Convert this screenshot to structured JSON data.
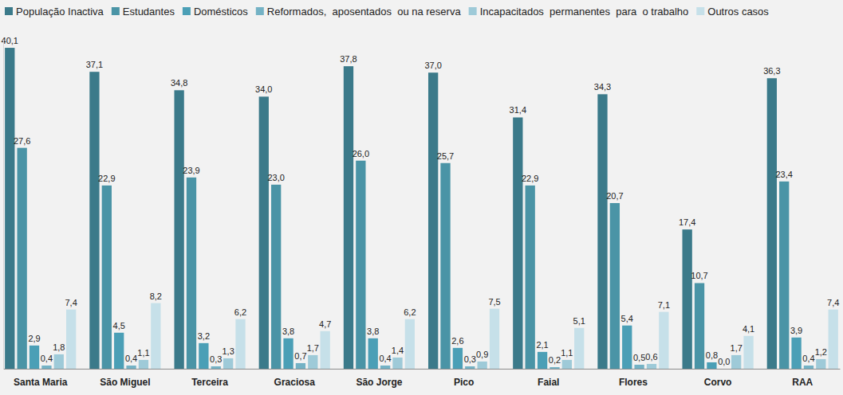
{
  "chart_data": {
    "type": "bar",
    "categories": [
      "Santa Maria",
      "São Miguel",
      "Terceira",
      "Graciosa",
      "São Jorge",
      "Pico",
      "Faial",
      "Flores",
      "Corvo",
      "RAA"
    ],
    "series": [
      {
        "name": "População Inactiva",
        "color": "#3b7a8a",
        "values": [
          40.1,
          37.1,
          34.8,
          34.0,
          37.8,
          37.0,
          31.4,
          34.3,
          17.4,
          36.3
        ],
        "value_labels": [
          "40,1",
          "37,1",
          "34,8",
          "34,0",
          "37,8",
          "37,0",
          "31,4",
          "34,3",
          "17,4",
          "36,3"
        ]
      },
      {
        "name": "Estudantes",
        "color": "#4a94a6",
        "values": [
          27.6,
          22.9,
          23.9,
          23.0,
          26.0,
          25.7,
          22.9,
          20.7,
          10.7,
          23.4
        ],
        "value_labels": [
          "27,6",
          "22,9",
          "23,9",
          "23,0",
          "26,0",
          "25,7",
          "22,9",
          "20,7",
          "10,7",
          "23,4"
        ]
      },
      {
        "name": "Domésticos",
        "color": "#4b9fb6",
        "values": [
          2.9,
          4.5,
          3.2,
          3.8,
          3.8,
          2.6,
          2.1,
          5.4,
          0.8,
          3.9
        ],
        "value_labels": [
          "2,9",
          "4,5",
          "3,2",
          "3,8",
          "3,8",
          "2,6",
          "2,1",
          "5,4",
          "0,8",
          "3,9"
        ]
      },
      {
        "name": "Reformados,  aposentados  ou na reserva",
        "color": "#74b2c5",
        "values": [
          0.4,
          0.4,
          0.3,
          0.7,
          0.4,
          0.3,
          0.2,
          0.5,
          0.0,
          0.4
        ],
        "value_labels": [
          "0,4",
          "0,4",
          "0,3",
          "0,7",
          "0,4",
          "0,3",
          "0,2",
          "0,5",
          "0,0",
          "0,4"
        ]
      },
      {
        "name": "Incapacitados  permanentes  para  o trabalho",
        "color": "#9ecad8",
        "values": [
          1.8,
          1.1,
          1.3,
          1.7,
          1.4,
          0.9,
          1.1,
          0.6,
          1.7,
          1.2
        ],
        "value_labels": [
          "1,8",
          "1,1",
          "1,3",
          "1,7",
          "1,4",
          "0,9",
          "1,1",
          "0,6",
          "1,7",
          "1,2"
        ]
      },
      {
        "name": "Outros casos",
        "color": "#c6e0e9",
        "values": [
          7.4,
          8.2,
          6.2,
          4.7,
          6.2,
          7.5,
          5.1,
          7.1,
          4.1,
          7.4
        ],
        "value_labels": [
          "7,4",
          "8,2",
          "6,2",
          "4,7",
          "6,2",
          "7,5",
          "5,1",
          "7,1",
          "4,1",
          "7,4"
        ]
      }
    ],
    "ylim": [
      0,
      41
    ],
    "data_labels": true,
    "tick_labels": "x",
    "legend": "top"
  }
}
